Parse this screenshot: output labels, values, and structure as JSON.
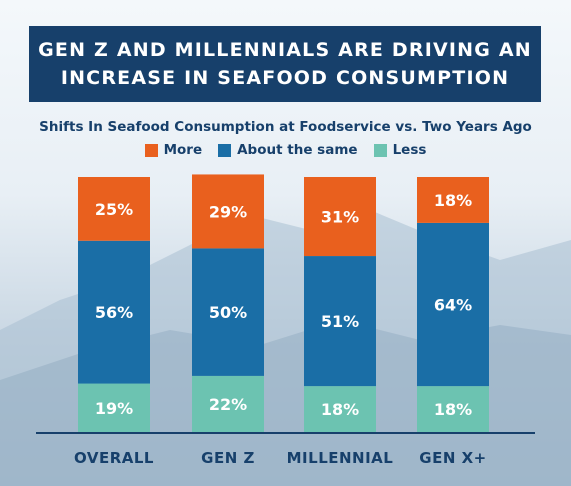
{
  "banner": {
    "line1": "GEN Z AND MILLENNIALS ARE DRIVING AN",
    "line2": "INCREASE IN SEAFOOD CONSUMPTION"
  },
  "chart_data": {
    "type": "bar",
    "stacked": true,
    "title": "Shifts In Seafood Consumption at Foodservice vs. Two Years Ago",
    "categories": [
      "OVERALL",
      "GEN Z",
      "MILLENNIAL",
      "GEN X+"
    ],
    "series": [
      {
        "name": "Less",
        "color": "#6cc3b1",
        "values": [
          19,
          22,
          18,
          18
        ]
      },
      {
        "name": "About the same",
        "color": "#1a6ea6",
        "values": [
          56,
          50,
          51,
          64
        ]
      },
      {
        "name": "More",
        "color": "#e9601e",
        "values": [
          25,
          29,
          31,
          18
        ]
      }
    ],
    "data_labels": [
      [
        "19%",
        "22%",
        "18%",
        "18%"
      ],
      [
        "56%",
        "50%",
        "51%",
        "64%"
      ],
      [
        "25%",
        "29%",
        "31%",
        "18%"
      ]
    ],
    "legend_order": [
      "More",
      "About the same",
      "Less"
    ],
    "legend_placement": "top-center",
    "ylim": [
      0,
      100
    ],
    "grid": false
  }
}
